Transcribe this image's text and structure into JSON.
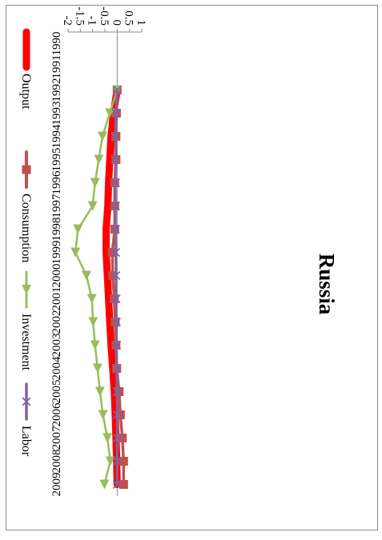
{
  "chart_data": {
    "type": "line",
    "title": "Russia",
    "xlabel": "",
    "ylabel": "",
    "x": [
      "1990",
      "1991",
      "1992",
      "1993",
      "1994",
      "1995",
      "1996",
      "1997",
      "1998",
      "1999",
      "2000",
      "2001",
      "2002",
      "2003",
      "2004",
      "2005",
      "2006",
      "2007",
      "2008",
      "2009"
    ],
    "ylim": [
      -2,
      1
    ],
    "yticks": [
      1,
      0.5,
      0,
      -0.5,
      -1,
      -1.5,
      -2
    ],
    "ytick_labels": [
      "1",
      "0.5",
      "0",
      "-0.5",
      "-1",
      "-1.5",
      "-2"
    ],
    "grid": false,
    "legend_position": "right",
    "series": [
      {
        "name": "Output",
        "color": "#ff0000",
        "marker": "none",
        "values": [
          null,
          null,
          0.0,
          -0.15,
          -0.25,
          -0.3,
          -0.35,
          -0.38,
          -0.45,
          -0.45,
          -0.4,
          -0.35,
          -0.3,
          -0.25,
          -0.18,
          -0.12,
          -0.08,
          -0.05,
          -0.02,
          0.0
        ]
      },
      {
        "name": "Consumption",
        "color": "#c0504d",
        "marker": "square",
        "values": [
          null,
          null,
          0.0,
          -0.03,
          -0.05,
          -0.05,
          -0.1,
          -0.1,
          -0.1,
          -0.2,
          -0.18,
          -0.12,
          -0.08,
          -0.05,
          -0.02,
          0.08,
          0.13,
          0.21,
          0.26,
          0.26
        ]
      },
      {
        "name": "Investment",
        "color": "#9bbb59",
        "marker": "triangle",
        "values": [
          null,
          null,
          0.0,
          -0.3,
          -0.6,
          -0.75,
          -0.9,
          -1.0,
          -1.6,
          -1.7,
          -1.25,
          -1.03,
          -0.98,
          -0.9,
          -0.8,
          -0.7,
          -0.58,
          -0.4,
          -0.28,
          -0.52
        ]
      },
      {
        "name": "Labor",
        "color": "#8064a2",
        "marker": "x",
        "values": [
          null,
          null,
          0.0,
          -0.05,
          -0.08,
          -0.08,
          -0.07,
          -0.07,
          -0.07,
          -0.06,
          -0.05,
          -0.04,
          -0.03,
          -0.02,
          -0.01,
          -0.01,
          0.0,
          0.0,
          0.0,
          0.0
        ]
      }
    ]
  }
}
